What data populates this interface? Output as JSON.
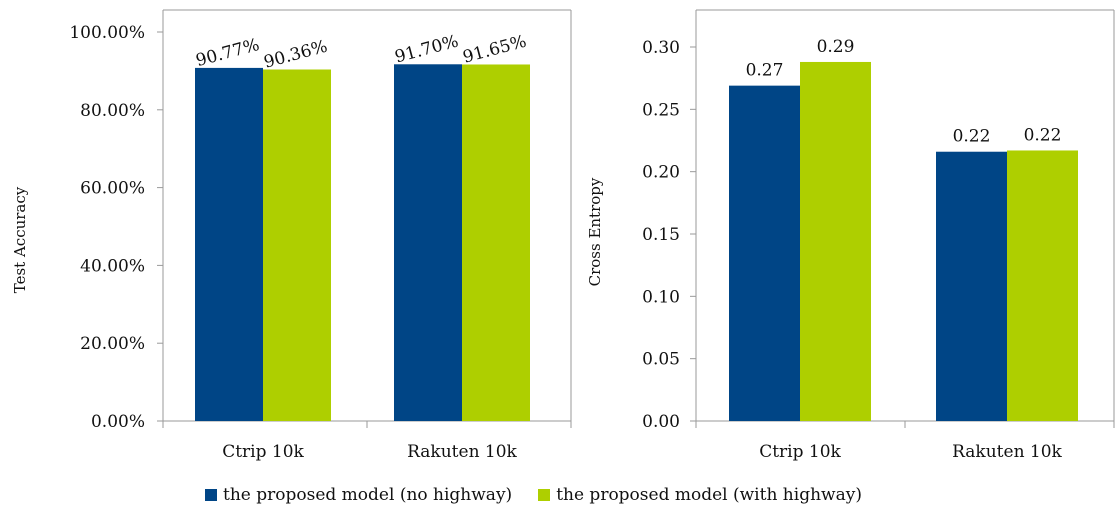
{
  "chart_data": [
    {
      "type": "bar",
      "title": "",
      "xlabel": "",
      "ylabel": "Test Accuracy",
      "categories": [
        "Ctrip 10k",
        "Rakuten 10k"
      ],
      "series": [
        {
          "name": "the proposed model (no highway)",
          "values": [
            90.77,
            91.7
          ],
          "labels": [
            "90.77%",
            "91.70%"
          ]
        },
        {
          "name": "the proposed model (with highway)",
          "values": [
            90.36,
            91.65
          ],
          "labels": [
            "90.36%",
            "91.65%"
          ]
        }
      ],
      "ylim": [
        0,
        100
      ],
      "yticks": [
        "0.00%",
        "20.00%",
        "40.00%",
        "60.00%",
        "80.00%",
        "100.00%"
      ],
      "grid": false,
      "data_label_rotation": "tilted"
    },
    {
      "type": "bar",
      "title": "",
      "xlabel": "",
      "ylabel": "Cross Entropy",
      "categories": [
        "Ctrip 10k",
        "Rakuten 10k"
      ],
      "series": [
        {
          "name": "the proposed model (no highway)",
          "values": [
            0.269,
            0.216
          ],
          "labels": [
            "0.27",
            "0.22"
          ]
        },
        {
          "name": "the proposed model (with highway)",
          "values": [
            0.288,
            0.217
          ],
          "labels": [
            "0.29",
            "0.22"
          ]
        }
      ],
      "ylim": [
        0,
        0.3
      ],
      "yticks": [
        "0.00",
        "0.05",
        "0.10",
        "0.15",
        "0.20",
        "0.25",
        "0.30"
      ],
      "grid": false
    }
  ],
  "legend": {
    "placement": "bottom-center",
    "items": [
      {
        "label": "the proposed model (no highway)",
        "color": "#004586"
      },
      {
        "label": "the proposed model (with highway)",
        "color": "#aecf00"
      }
    ]
  },
  "colors": [
    "#004586",
    "#aecf00"
  ]
}
